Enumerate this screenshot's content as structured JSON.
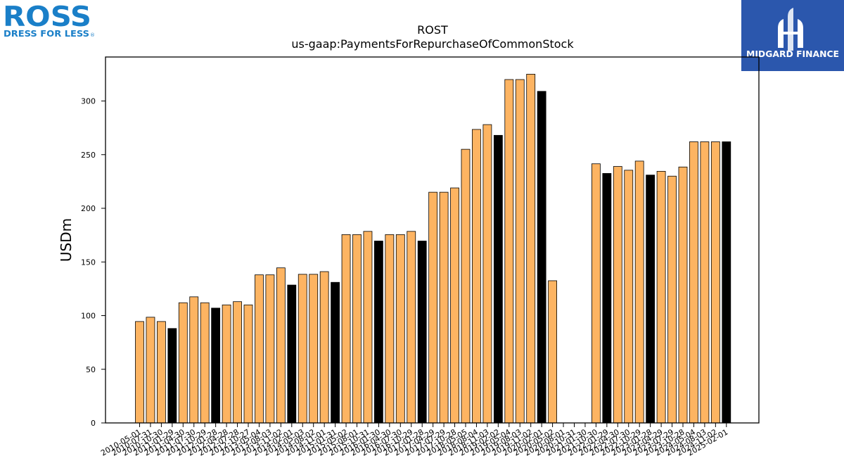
{
  "brand": {
    "left_logo": {
      "wordmark": "ROSS",
      "tagline": "DRESS FOR LESS",
      "trademark": "®",
      "color": "#1a7fc8"
    },
    "right_logo": {
      "name": "MIDGARD FINANCE",
      "background": "#2b57ad",
      "icon": "midgard-mark-icon"
    }
  },
  "chart_data": {
    "type": "bar",
    "title": "ROST",
    "subtitle": "us-gaap:PaymentsForRepurchaseOfCommonStock",
    "xlabel": "",
    "ylabel": "USDm",
    "ylim": [
      0,
      341
    ],
    "yticks": [
      0,
      50,
      100,
      150,
      200,
      250,
      300
    ],
    "grid": false,
    "colors": {
      "quarterly": "#fdb462",
      "annual": "#000000",
      "edge": "#000000"
    },
    "categories": [
      "2010-05-01",
      "2010-07-31",
      "2010-10-30",
      "2011-01-29",
      "2011-04-30",
      "2011-07-30",
      "2011-10-29",
      "2012-01-28",
      "2012-04-28",
      "2012-07-28",
      "2012-10-27",
      "2013-05-04",
      "2013-08-03",
      "2013-11-02",
      "2014-02-01",
      "2014-05-03",
      "2014-08-02",
      "2014-11-01",
      "2015-01-31",
      "2015-05-02",
      "2015-08-01",
      "2015-10-31",
      "2016-01-30",
      "2016-04-30",
      "2016-07-30",
      "2016-10-29",
      "2017-01-28",
      "2017-04-29",
      "2017-07-29",
      "2017-10-28",
      "2018-05-05",
      "2018-08-04",
      "2018-11-03",
      "2019-02-02",
      "2019-05-04",
      "2019-08-03",
      "2019-11-02",
      "2020-02-01",
      "2020-05-02",
      "2020-08-01",
      "2020-10-31",
      "2021-01-30",
      "2021-10-30",
      "2022-01-29",
      "2022-04-30",
      "2022-07-30",
      "2022-10-29",
      "2023-01-28",
      "2023-04-29",
      "2023-07-29",
      "2023-10-28",
      "2024-05-04",
      "2024-08-03",
      "2024-11-02",
      "2025-02-01"
    ],
    "values": [
      94.5,
      98.5,
      94.5,
      88,
      112,
      117.5,
      112,
      107,
      110,
      113,
      110,
      138,
      138,
      144.5,
      128.5,
      138.5,
      138.5,
      141,
      131,
      175.5,
      175.5,
      178.5,
      169.5,
      175.5,
      175.5,
      178.5,
      169.5,
      215,
      215,
      219,
      255,
      273.5,
      278,
      268,
      320,
      320,
      325,
      309,
      132.5,
      0,
      0,
      0,
      241.5,
      232.5,
      239,
      235.5,
      244,
      231,
      234.5,
      230,
      238.5,
      262,
      262,
      262,
      262
    ],
    "annual_flags": [
      false,
      false,
      false,
      true,
      false,
      false,
      false,
      true,
      false,
      false,
      false,
      false,
      false,
      false,
      true,
      false,
      false,
      false,
      true,
      false,
      false,
      false,
      true,
      false,
      false,
      false,
      true,
      false,
      false,
      false,
      false,
      false,
      false,
      true,
      false,
      false,
      false,
      true,
      false,
      false,
      false,
      false,
      false,
      true,
      false,
      false,
      false,
      true,
      false,
      false,
      false,
      false,
      false,
      false,
      true
    ]
  }
}
